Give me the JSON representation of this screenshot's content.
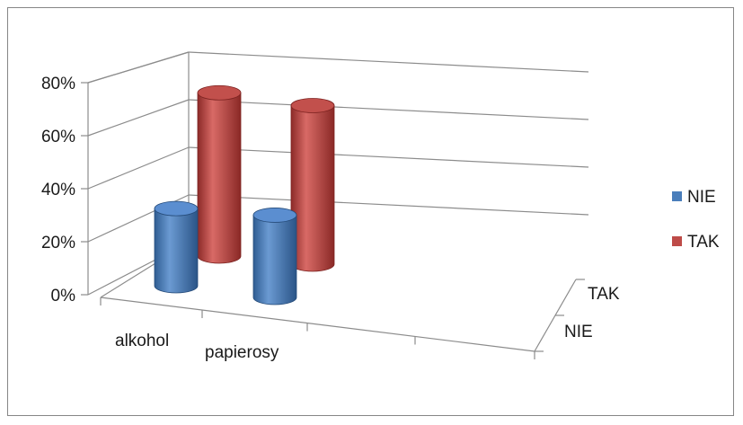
{
  "chart_data": {
    "type": "bar",
    "style": "3d-cylinder",
    "categories": [
      "alkohol",
      "papierosy"
    ],
    "series": [
      {
        "name": "NIE",
        "values": [
          30,
          32
        ],
        "color": "#4a7ebb"
      },
      {
        "name": "TAK",
        "values": [
          70,
          68
        ],
        "color": "#be4b48"
      }
    ],
    "ylim": [
      0,
      80
    ],
    "yticks": [
      "0%",
      "20%",
      "40%",
      "60%",
      "80%"
    ],
    "depth_labels": [
      "TAK",
      "NIE"
    ],
    "grid": true,
    "legend_position": "right"
  }
}
